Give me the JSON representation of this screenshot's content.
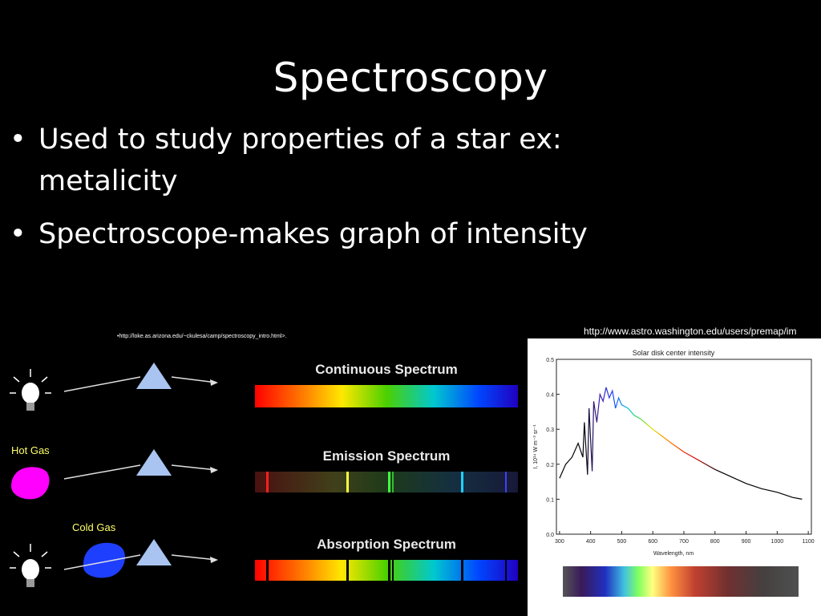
{
  "slide": {
    "title": "Spectroscopy",
    "bullets": [
      " Used to study properties of a star ex: metalicity",
      "Spectroscope-makes graph of intensity"
    ],
    "bullet_glyph": "•"
  },
  "left_figure": {
    "source": "•http://loke.as.arizona.edu/~ckulesa/camp/spectroscopy_intro.html>.",
    "rows": [
      {
        "label": "Continuous Spectrum",
        "gas_label": ""
      },
      {
        "label": "Emission Spectrum",
        "gas_label": "Hot Gas"
      },
      {
        "label": "Absorption Spectrum",
        "gas_label": "Cold Gas"
      }
    ],
    "colors": {
      "hot_gas": "#ff00ff",
      "cold_gas": "#1f3fff",
      "prism": "#a9c4f0",
      "label_yellow": "#ffff66"
    }
  },
  "right_figure": {
    "source": "http://www.astro.washington.edu/users/premap/im"
  },
  "chart_data": {
    "type": "line",
    "title": "Solar disk center intensity",
    "xlabel": "Wavelength, nm",
    "ylabel": "I, 10¹⁴ W m⁻³ sr⁻¹",
    "xlim": [
      290,
      1110
    ],
    "ylim": [
      0,
      0.5
    ],
    "xticks": [
      300,
      400,
      500,
      600,
      700,
      800,
      900,
      1000,
      1100
    ],
    "yticks": [
      0.0,
      0.1,
      0.2,
      0.3,
      0.4,
      0.5
    ],
    "ytick_labels": [
      "0.0",
      "0.1",
      "0.2",
      "0.3",
      "0.4",
      "0.5"
    ],
    "series": [
      {
        "x": [
          300,
          320,
          340,
          360,
          375,
          380,
          390,
          395,
          405,
          410,
          420,
          430,
          440,
          450,
          460,
          470,
          480,
          490,
          500,
          520,
          540,
          560,
          580,
          600,
          630,
          660,
          700,
          750,
          800,
          850,
          900,
          950,
          1000,
          1050,
          1080
        ],
        "y": [
          0.16,
          0.2,
          0.22,
          0.26,
          0.22,
          0.32,
          0.17,
          0.36,
          0.18,
          0.38,
          0.32,
          0.4,
          0.38,
          0.42,
          0.39,
          0.41,
          0.36,
          0.39,
          0.37,
          0.36,
          0.34,
          0.33,
          0.315,
          0.3,
          0.28,
          0.26,
          0.235,
          0.21,
          0.185,
          0.165,
          0.145,
          0.13,
          0.12,
          0.105,
          0.1
        ]
      }
    ],
    "grid": false
  }
}
